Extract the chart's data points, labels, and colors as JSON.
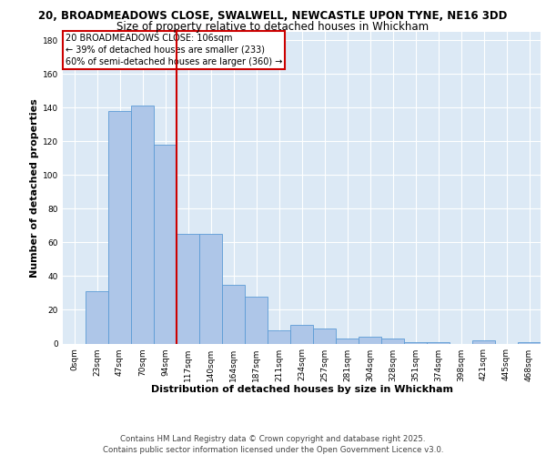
{
  "title_line1": "20, BROADMEADOWS CLOSE, SWALWELL, NEWCASTLE UPON TYNE, NE16 3DD",
  "title_line2": "Size of property relative to detached houses in Whickham",
  "xlabel": "Distribution of detached houses by size in Whickham",
  "ylabel": "Number of detached properties",
  "bar_labels": [
    "0sqm",
    "23sqm",
    "47sqm",
    "70sqm",
    "94sqm",
    "117sqm",
    "140sqm",
    "164sqm",
    "187sqm",
    "211sqm",
    "234sqm",
    "257sqm",
    "281sqm",
    "304sqm",
    "328sqm",
    "351sqm",
    "374sqm",
    "398sqm",
    "421sqm",
    "445sqm",
    "468sqm"
  ],
  "bar_values": [
    0,
    31,
    138,
    141,
    118,
    65,
    65,
    35,
    28,
    8,
    11,
    9,
    3,
    4,
    3,
    1,
    1,
    0,
    2,
    0,
    1
  ],
  "bar_color": "#aec6e8",
  "bar_edge_color": "#5b9bd5",
  "vline_x": 4.5,
  "vline_color": "#cc0000",
  "annotation_text": "20 BROADMEADOWS CLOSE: 106sqm\n← 39% of detached houses are smaller (233)\n60% of semi-detached houses are larger (360) →",
  "annotation_box_color": "#ffffff",
  "annotation_box_edge": "#cc0000",
  "ylim": [
    0,
    185
  ],
  "yticks": [
    0,
    20,
    40,
    60,
    80,
    100,
    120,
    140,
    160,
    180
  ],
  "bg_color": "#dce9f5",
  "footer_text": "Contains HM Land Registry data © Crown copyright and database right 2025.\nContains public sector information licensed under the Open Government Licence v3.0.",
  "title_fontsize": 8.5,
  "subtitle_fontsize": 8.5,
  "axis_label_fontsize": 8,
  "tick_fontsize": 6.5,
  "footer_fontsize": 6.2,
  "annotation_fontsize": 7.0
}
